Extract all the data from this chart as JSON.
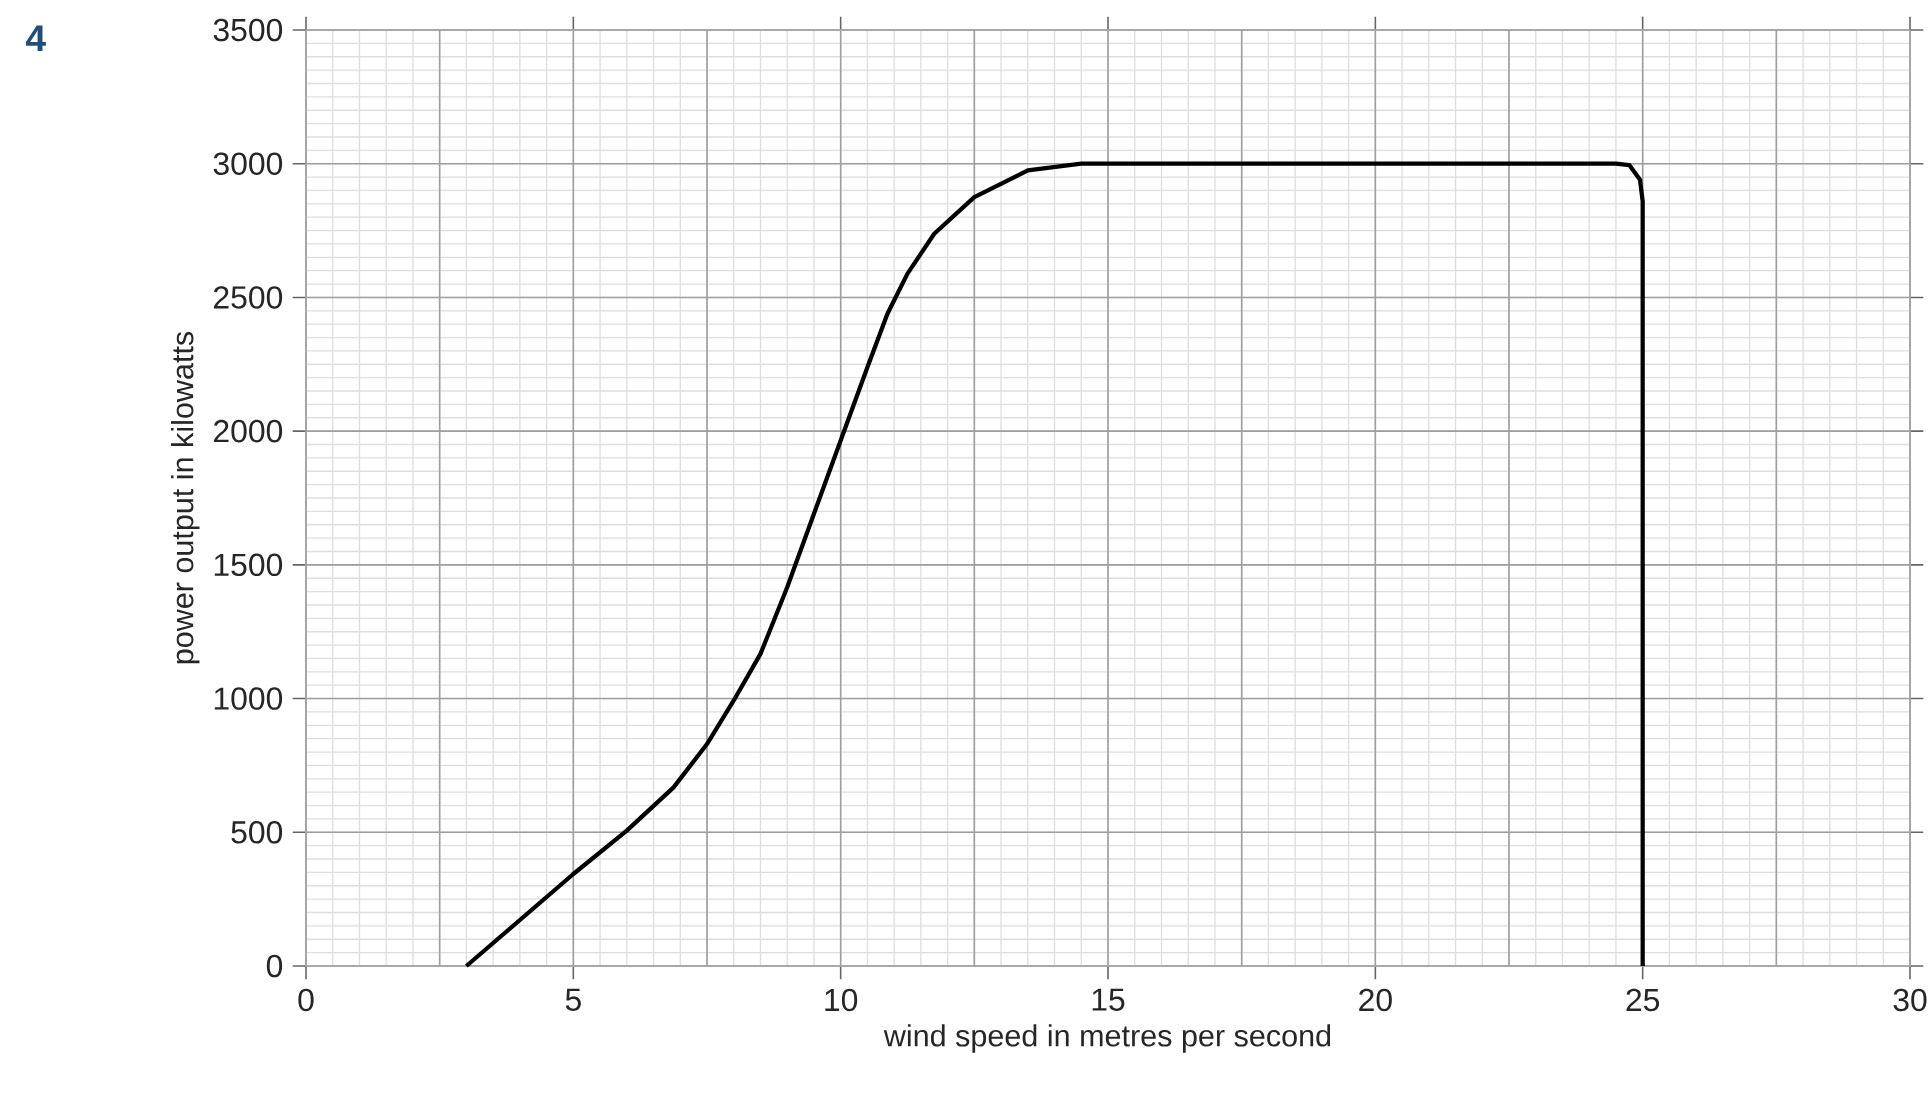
{
  "chart_data": {
    "type": "line",
    "xlabel": "wind speed in metres per second",
    "ylabel": "power output in kilowatts",
    "annotations": [
      "4"
    ],
    "x": [
      3,
      5,
      6,
      6.875,
      7.5,
      8,
      8.5,
      9,
      9.5,
      10,
      10.5,
      10.875,
      11.25,
      11.75,
      12.5,
      13.5,
      14.5,
      24.5,
      24.75,
      24.95,
      25,
      25
    ],
    "series": [
      {
        "color": "#000000",
        "values": [
          0,
          344,
          506,
          668,
          830,
          993,
          1167,
          1416,
          1691,
          1965,
          2239,
          2439,
          2589,
          2738,
          2875,
          2975,
          3000,
          3000,
          2995,
          2940,
          2860,
          0
        ]
      }
    ],
    "xlim": [
      0,
      30
    ],
    "xticks": [
      0,
      5,
      10,
      15,
      20,
      25,
      30
    ],
    "ylim": [
      0,
      3500
    ],
    "yticks": [
      0,
      500,
      1000,
      1500,
      2000,
      2500,
      3000,
      3500
    ],
    "grid": true,
    "marker": "none",
    "line_style": "solid"
  }
}
